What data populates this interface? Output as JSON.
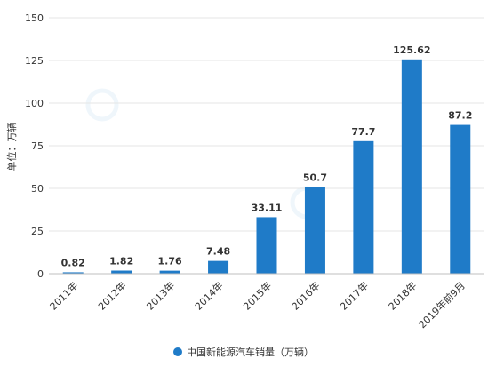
{
  "chart_data": {
    "type": "bar",
    "categories": [
      "2011年",
      "2012年",
      "2013年",
      "2014年",
      "2015年",
      "2016年",
      "2017年",
      "2018年",
      "2019年前9月"
    ],
    "series": [
      {
        "name": "中国新能源汽车销量（万辆）",
        "values": [
          0.82,
          1.82,
          1.76,
          7.48,
          33.11,
          50.7,
          77.7,
          125.62,
          87.2
        ],
        "color": "#1f7bc8"
      }
    ],
    "data_labels": [
      "0.82",
      "1.82",
      "1.76",
      "7.48",
      "33.11",
      "50.7",
      "77.7",
      "125.62",
      "87.2"
    ],
    "ylabel": "单位：万辆",
    "ylim": [
      0,
      150
    ],
    "yticks": [
      0,
      25,
      50,
      75,
      100,
      125,
      150
    ],
    "grid": true,
    "legend_position": "bottom-center"
  }
}
